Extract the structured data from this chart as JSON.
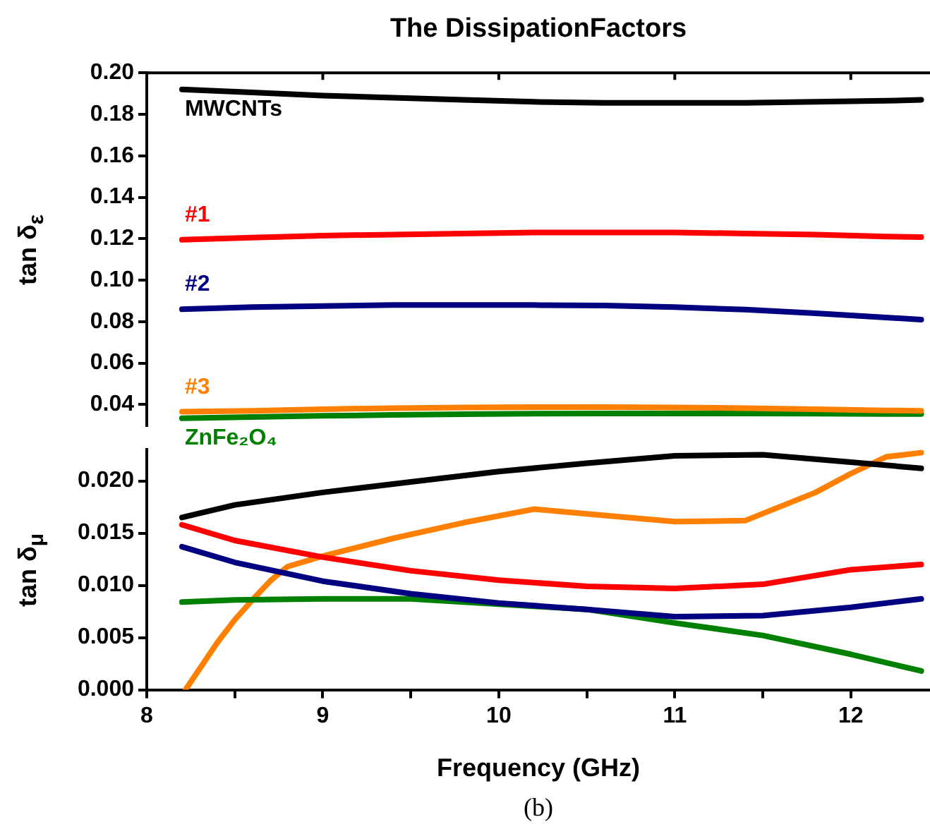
{
  "chart_data": [
    {
      "type": "line",
      "title": "The DissipationFactors",
      "ylabel": "tan δ$_{ε}$",
      "x": [
        8.2,
        8.6,
        9.0,
        9.4,
        9.8,
        10.2,
        10.6,
        11.0,
        11.4,
        11.8,
        12.2,
        12.4
      ],
      "xlim": [
        8,
        12.45
      ],
      "xticks": [
        8,
        9,
        10,
        11,
        12
      ],
      "ylim": [
        0.03,
        0.2
      ],
      "yticks": [
        0.04,
        0.06,
        0.08,
        {
          "value": 0.1,
          "label": "0.10"
        },
        0.12,
        0.14,
        0.16,
        0.18,
        {
          "value": 0.2,
          "label": "0.20"
        }
      ],
      "tick_labels": "y",
      "grid": false,
      "legend": false,
      "marker": "none",
      "line_style": "solid",
      "series": [
        {
          "name": "MWCNTs",
          "color": "#000000",
          "values": [
            0.192,
            0.1905,
            0.189,
            0.188,
            0.187,
            0.186,
            0.1855,
            0.1855,
            0.1855,
            0.186,
            0.1865,
            0.187
          ]
        },
        {
          "name": "#1",
          "color": "#ff0000",
          "values": [
            0.1195,
            0.1205,
            0.1215,
            0.122,
            0.1225,
            0.123,
            0.123,
            0.123,
            0.1225,
            0.122,
            0.121,
            0.1208
          ]
        },
        {
          "name": "#2",
          "color": "#000080",
          "values": [
            0.086,
            0.087,
            0.0875,
            0.088,
            0.088,
            0.088,
            0.0878,
            0.087,
            0.0858,
            0.084,
            0.082,
            0.081
          ]
        },
        {
          "name": "#3",
          "color": "#ff8000",
          "values": [
            0.0366,
            0.037,
            0.0378,
            0.0383,
            0.0386,
            0.0388,
            0.0388,
            0.0386,
            0.0383,
            0.0378,
            0.0372,
            0.037
          ]
        },
        {
          "name": "ZnFe₂O₄",
          "color": "#008000",
          "values": [
            0.0334,
            0.034,
            0.0346,
            0.035,
            0.0354,
            0.0356,
            0.0357,
            0.0357,
            0.0357,
            0.0356,
            0.0355,
            0.0355
          ]
        }
      ]
    },
    {
      "type": "line",
      "xlabel": "Frequency (GHz)",
      "ylabel": "tan δ$_{μ}$",
      "annotations": [
        "(b)"
      ],
      "x": [
        8.2,
        8.5,
        9.0,
        9.5,
        10.0,
        10.5,
        11.0,
        11.5,
        12.0,
        12.4
      ],
      "xlim": [
        8,
        12.45
      ],
      "xticks": [
        8,
        {
          "value": 8.5,
          "label": null
        },
        9,
        {
          "value": 9.5,
          "label": null
        },
        10,
        {
          "value": 10.5,
          "label": null
        },
        11,
        {
          "value": 11.5,
          "label": null
        },
        12
      ],
      "ylim": [
        0,
        0.023
      ],
      "yticks": [
        {
          "value": 0,
          "label": "0.000"
        },
        {
          "value": 0.005,
          "label": "0.005"
        },
        {
          "value": 0.01,
          "label": "0.010"
        },
        {
          "value": 0.015,
          "label": "0.015"
        },
        {
          "value": 0.02,
          "label": "0.020"
        }
      ],
      "grid": false,
      "legend": false,
      "marker": "none",
      "line_style": "solid",
      "series": [
        {
          "color": "#000000",
          "values": [
            0.0165,
            0.0177,
            0.0189,
            0.0199,
            0.0209,
            0.0217,
            0.0224,
            0.0225,
            0.0218,
            0.0212
          ]
        },
        {
          "color": "#ff0000",
          "values": [
            0.0158,
            0.0143,
            0.0127,
            0.0114,
            0.0105,
            0.0099,
            0.0097,
            0.0101,
            0.0115,
            0.012
          ]
        },
        {
          "color": "#000080",
          "values": [
            0.0137,
            0.0122,
            0.0104,
            0.0092,
            0.0083,
            0.0077,
            0.007,
            0.0071,
            0.0079,
            0.0087
          ]
        },
        {
          "color": "#008000",
          "values": [
            0.0084,
            0.0086,
            0.0087,
            0.0087,
            0.0082,
            0.0077,
            0.0064,
            0.0052,
            0.0034,
            0.0018
          ]
        },
        {
          "color": "#ff8000",
          "x": [
            8.22,
            8.3,
            8.4,
            8.5,
            8.6,
            8.7,
            8.8,
            9.0,
            9.4,
            9.8,
            10.2,
            10.6,
            11.0,
            11.4,
            11.8,
            12.0,
            12.2,
            12.4
          ],
          "values": [
            0,
            0.002,
            0.0045,
            0.0067,
            0.0086,
            0.0104,
            0.0118,
            0.0128,
            0.0145,
            0.016,
            0.0173,
            0.0167,
            0.0161,
            0.0162,
            0.0189,
            0.0207,
            0.0223,
            0.0227
          ]
        }
      ]
    }
  ]
}
